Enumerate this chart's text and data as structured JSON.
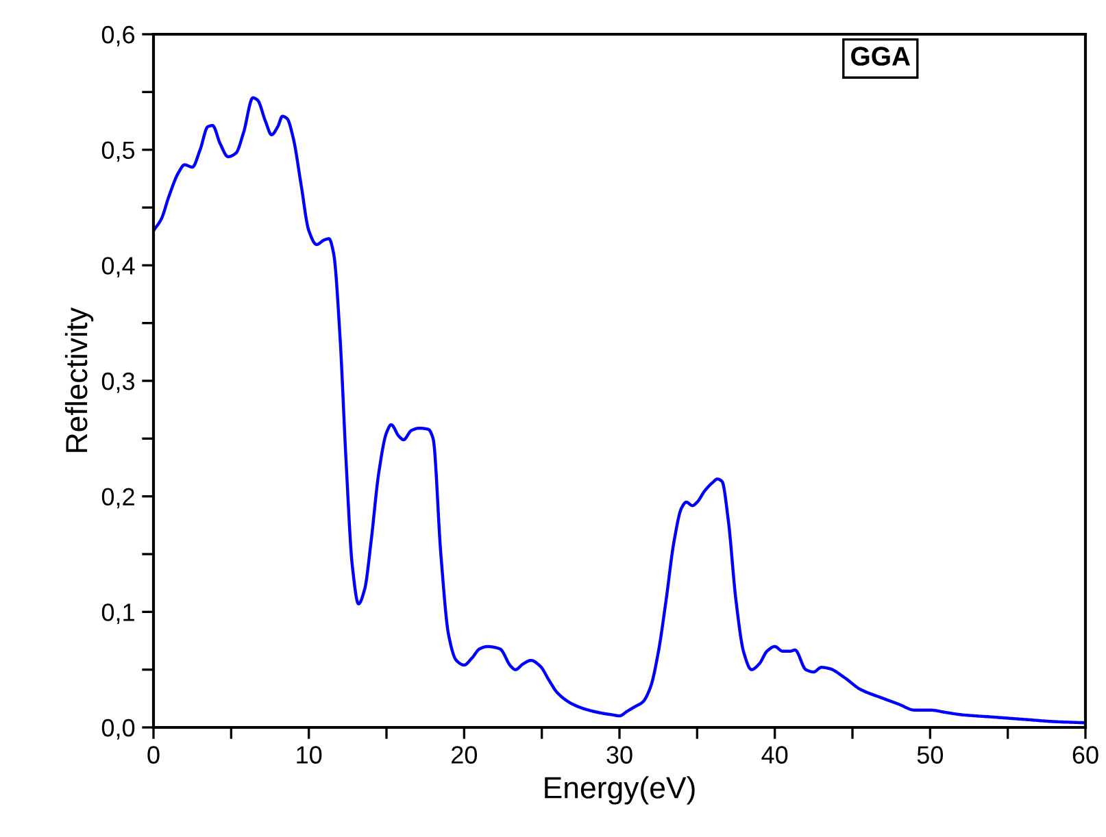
{
  "chart_data": {
    "type": "line",
    "xlabel": "Energy(eV)",
    "ylabel": "Reflectivity",
    "annotations": [
      "GGA"
    ],
    "xlim": [
      0,
      60
    ],
    "ylim": [
      0,
      0.6
    ],
    "xticks": [
      0,
      {
        "value": 5,
        "label": null
      },
      10,
      {
        "value": 15,
        "label": null
      },
      20,
      {
        "value": 25,
        "label": null
      },
      30,
      {
        "value": 35,
        "label": null
      },
      40,
      {
        "value": 45,
        "label": null
      },
      50,
      {
        "value": 55,
        "label": null
      },
      60
    ],
    "yticks": [
      {
        "value": 0,
        "label": "0,0"
      },
      {
        "value": 0.05,
        "label": null
      },
      {
        "value": 0.1,
        "label": "0,1"
      },
      {
        "value": 0.15,
        "label": null
      },
      {
        "value": 0.2,
        "label": "0,2"
      },
      {
        "value": 0.25,
        "label": null
      },
      {
        "value": 0.3,
        "label": "0,3"
      },
      {
        "value": 0.35,
        "label": null
      },
      {
        "value": 0.4,
        "label": "0,4"
      },
      {
        "value": 0.45,
        "label": null
      },
      {
        "value": 0.5,
        "label": "0,5"
      },
      {
        "value": 0.55,
        "label": null
      },
      {
        "value": 0.6,
        "label": "0,6"
      }
    ],
    "grid": false,
    "marker": "none",
    "line_style": "solid",
    "series": [
      {
        "color": "#0000ff",
        "x": [
          0,
          0.5,
          1,
          1.6,
          2,
          2.5,
          3,
          3.5,
          3.8,
          4.3,
          4.8,
          5.3,
          5.8,
          6.4,
          6.7,
          7.2,
          7.6,
          8,
          8.3,
          8.6,
          9,
          9.5,
          10,
          10.5,
          11,
          11.3,
          11.6,
          12,
          12.4,
          12.8,
          13.2,
          13.6,
          14,
          14.5,
          15,
          15.3,
          15.8,
          16.1,
          16.6,
          17.1,
          17.7,
          18,
          18.5,
          19,
          19.5,
          20,
          20.5,
          21,
          21.5,
          22.3,
          23,
          23.3,
          23.8,
          24.3,
          24.9,
          25.5,
          26,
          27,
          28,
          29,
          29.5,
          30,
          30.5,
          31,
          31.5,
          32,
          32.5,
          33,
          33.5,
          34,
          34.3,
          34.7,
          35,
          35.5,
          36,
          36.3,
          36.6,
          37,
          37.5,
          38,
          38.5,
          39,
          39.5,
          40,
          40.5,
          41,
          41.3,
          42,
          42.5,
          43,
          43.5,
          44.5,
          45.5,
          47,
          48,
          49,
          50,
          51,
          52,
          54,
          56,
          58,
          60
        ],
        "values": [
          0.43,
          0.44,
          0.46,
          0.48,
          0.487,
          0.485,
          0.5,
          0.52,
          0.521,
          0.505,
          0.494,
          0.497,
          0.515,
          0.545,
          0.543,
          0.525,
          0.513,
          0.52,
          0.529,
          0.527,
          0.51,
          0.47,
          0.43,
          0.418,
          0.422,
          0.423,
          0.41,
          0.34,
          0.23,
          0.14,
          0.107,
          0.12,
          0.16,
          0.22,
          0.255,
          0.262,
          0.252,
          0.249,
          0.257,
          0.259,
          0.258,
          0.25,
          0.15,
          0.08,
          0.058,
          0.054,
          0.06,
          0.068,
          0.07,
          0.068,
          0.053,
          0.05,
          0.055,
          0.058,
          0.053,
          0.04,
          0.03,
          0.02,
          0.015,
          0.012,
          0.011,
          0.01,
          0.014,
          0.018,
          0.022,
          0.035,
          0.065,
          0.11,
          0.16,
          0.19,
          0.195,
          0.192,
          0.195,
          0.205,
          0.212,
          0.215,
          0.213,
          0.18,
          0.11,
          0.065,
          0.05,
          0.055,
          0.066,
          0.07,
          0.066,
          0.066,
          0.067,
          0.05,
          0.048,
          0.052,
          0.051,
          0.043,
          0.033,
          0.025,
          0.02,
          0.015,
          0.015,
          0.013,
          0.011,
          0.009,
          0.007,
          0.005,
          0.004
        ]
      }
    ]
  }
}
